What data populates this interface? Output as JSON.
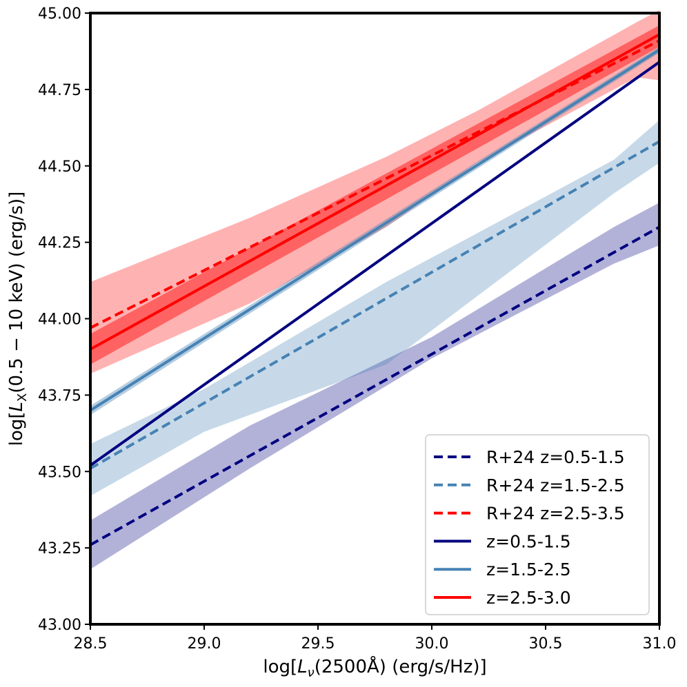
{
  "chart_data": {
    "type": "line",
    "title": "",
    "xlabel_parts": {
      "pre": "log[",
      "sym": "L",
      "sub": "ν",
      "post": "(2500Å) (erg/s/Hz)]"
    },
    "ylabel_parts": {
      "pre": "log[",
      "sym": "L",
      "sub": "X",
      "post": "(0.5 − 10 keV) (erg/s)]"
    },
    "xlim": [
      28.5,
      31.0
    ],
    "ylim": [
      43.0,
      45.0
    ],
    "xticks": [
      28.5,
      29.0,
      29.5,
      30.0,
      30.5,
      31.0
    ],
    "xtick_labels": [
      "28.5",
      "29.0",
      "29.5",
      "30.0",
      "30.5",
      "31.0"
    ],
    "yticks": [
      43.0,
      43.25,
      43.5,
      43.75,
      44.0,
      44.25,
      44.5,
      44.75,
      45.0
    ],
    "ytick_labels": [
      "43.00",
      "43.25",
      "43.50",
      "43.75",
      "44.00",
      "44.25",
      "44.50",
      "44.75",
      "45.00"
    ],
    "legend_position": "lower-right",
    "colors": {
      "navy": "#000080",
      "steelblue": "#4682b4",
      "red": "#ff0000"
    },
    "bands": [
      {
        "name": "R+24 z=0.5-1.5 band",
        "color": "#000080",
        "opacity": 0.3,
        "x": [
          28.5,
          29.2,
          30.0,
          30.8,
          31.0
        ],
        "lower": [
          43.18,
          43.51,
          43.87,
          44.18,
          44.24
        ],
        "upper": [
          43.34,
          43.65,
          43.94,
          44.3,
          44.38
        ]
      },
      {
        "name": "R+24 z=1.5-2.5 band",
        "color": "#4682b4",
        "opacity": 0.3,
        "x": [
          28.5,
          29.0,
          29.8,
          30.8,
          31.0
        ],
        "lower": [
          43.42,
          43.63,
          43.85,
          44.41,
          44.51
        ],
        "upper": [
          43.59,
          43.77,
          44.12,
          44.52,
          44.65
        ]
      },
      {
        "name": "R+24 z=2.5-3.5 band",
        "color": "#ff0000",
        "opacity": 0.3,
        "x": [
          28.5,
          29.2,
          29.8,
          30.2,
          30.9,
          31.0
        ],
        "lower": [
          43.82,
          44.05,
          44.3,
          44.51,
          44.79,
          44.78
        ],
        "upper": [
          44.12,
          44.33,
          44.53,
          44.68,
          44.97,
          45.01
        ]
      },
      {
        "name": "z=2.5-3.0 band",
        "color": "#ff0000",
        "opacity": 0.45,
        "x": [
          28.5,
          31.0
        ],
        "lower": [
          43.85,
          44.89
        ],
        "upper": [
          43.95,
          44.96
        ]
      },
      {
        "name": "z=1.5-2.5 band",
        "color": "#4682b4",
        "opacity": 0.4,
        "x": [
          28.5,
          31.0
        ],
        "lower": [
          43.685,
          44.87
        ],
        "upper": [
          43.715,
          44.89
        ]
      }
    ],
    "series": [
      {
        "name": "R+24 z=0.5-1.5",
        "color": "#000080",
        "style": "dashed",
        "x": [
          28.5,
          31.0
        ],
        "y": [
          43.26,
          44.3
        ]
      },
      {
        "name": "R+24 z=1.5-2.5",
        "color": "#4682b4",
        "style": "dashed",
        "x": [
          28.5,
          31.0
        ],
        "y": [
          43.51,
          44.58
        ]
      },
      {
        "name": "R+24 z=2.5-3.5",
        "color": "#ff0000",
        "style": "dashed",
        "x": [
          28.5,
          31.0
        ],
        "y": [
          43.97,
          44.91
        ]
      },
      {
        "name": "z=0.5-1.5",
        "color": "#000080",
        "style": "solid",
        "x": [
          28.5,
          31.0
        ],
        "y": [
          43.52,
          44.84
        ]
      },
      {
        "name": "z=1.5-2.5",
        "color": "#4682b4",
        "style": "solid",
        "x": [
          28.5,
          31.0
        ],
        "y": [
          43.7,
          44.88
        ]
      },
      {
        "name": "z=2.5-3.0",
        "color": "#ff0000",
        "style": "solid",
        "x": [
          28.5,
          31.0
        ],
        "y": [
          43.9,
          44.93
        ]
      }
    ]
  }
}
